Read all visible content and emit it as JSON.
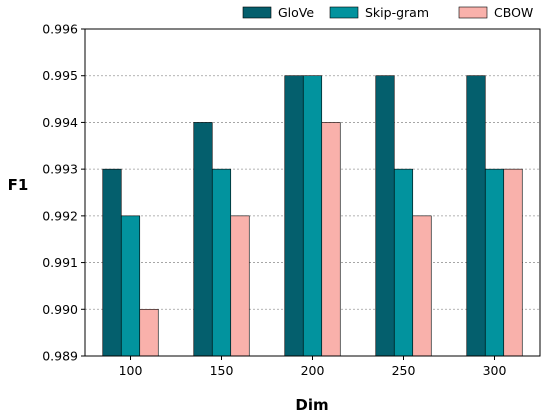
{
  "chart_data": {
    "type": "bar",
    "title": "",
    "xlabel": "Dim",
    "ylabel": "F1",
    "categories": [
      "100",
      "150",
      "200",
      "250",
      "300"
    ],
    "series": [
      {
        "name": "GloVe",
        "color": "#045f6d",
        "values": [
          0.993,
          0.994,
          0.995,
          0.995,
          0.995
        ]
      },
      {
        "name": "Skip-gram",
        "color": "#02939e",
        "values": [
          0.992,
          0.993,
          0.995,
          0.993,
          0.993
        ]
      },
      {
        "name": "CBOW",
        "color": "#f9b1ab",
        "values": [
          0.99,
          0.992,
          0.994,
          0.992,
          0.993
        ]
      }
    ],
    "ylim": [
      0.989,
      0.996
    ],
    "yticks": [
      "0.989",
      "0.990",
      "0.991",
      "0.992",
      "0.993",
      "0.994",
      "0.995",
      "0.996"
    ],
    "grid": "y-dashed",
    "legend": "top-right"
  }
}
